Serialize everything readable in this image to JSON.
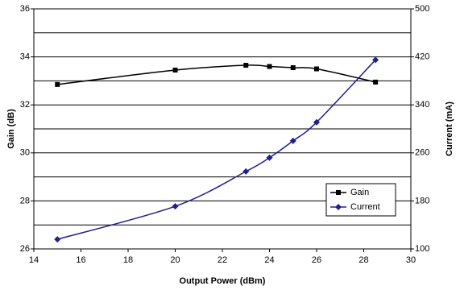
{
  "chart_data": {
    "type": "line",
    "xlabel": "Output Power (dBm)",
    "ylabel": "Gain (dB)",
    "y2label": "Current (mA)",
    "xlim": [
      14,
      30
    ],
    "xticks": [
      14,
      16,
      18,
      20,
      22,
      24,
      26,
      28,
      30
    ],
    "ylim": [
      26,
      36
    ],
    "yticks": [
      26,
      28,
      30,
      32,
      34,
      36
    ],
    "y2lim": [
      100,
      500
    ],
    "y2ticks": [
      100,
      180,
      260,
      340,
      420,
      500
    ],
    "grid": true,
    "minor_grid": [
      27,
      29,
      31,
      33,
      35
    ],
    "legend": "lower right",
    "series": [
      {
        "name": "Gain",
        "color": "#000000",
        "marker": "square",
        "x": [
          15,
          20,
          23,
          24,
          25,
          26,
          28.5
        ],
        "values": [
          32.85,
          33.45,
          33.65,
          33.6,
          33.55,
          33.5,
          32.95
        ]
      },
      {
        "name": "Current",
        "color": "#1f1f8f",
        "marker": "diamond",
        "axis": "y2",
        "x": [
          15,
          20,
          23,
          24,
          25,
          26,
          28.5
        ],
        "values": [
          116,
          171,
          229,
          252,
          280,
          311,
          415
        ]
      }
    ]
  }
}
